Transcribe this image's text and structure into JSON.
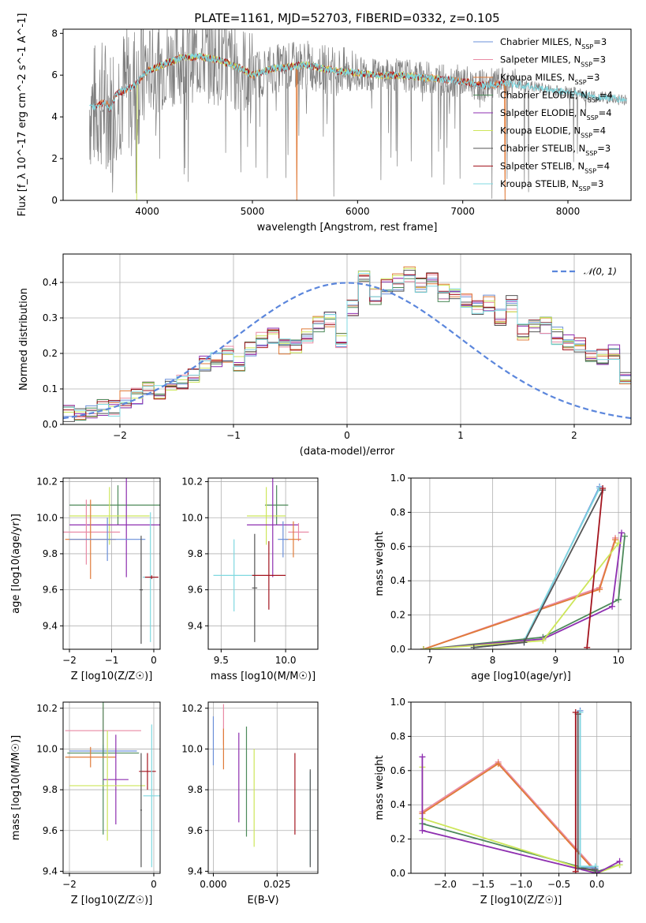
{
  "figure_title": "PLATE=1161, MJD=52703, FIBERID=0332, z=0.105",
  "colors": {
    "Chabrier MILES": "#6a8fd8",
    "Salpeter MILES": "#e98aa4",
    "Kroupa MILES": "#e07b39",
    "Chabrier ELODIE": "#4d8a5a",
    "Salpeter ELODIE": "#8e2fb0",
    "Kroupa ELODIE": "#cde65a",
    "Chabrier STELIB": "#555555",
    "Salpeter STELIB": "#a3141e",
    "Kroupa STELIB": "#7fd8e0"
  },
  "chart_data": [
    {
      "id": "spectrum",
      "type": "line",
      "title": "PLATE=1161, MJD=52703, FIBERID=0332, z=0.105",
      "xlabel": "wavelength [Angstrom, rest frame]",
      "ylabel": "Flux [f_λ 10^-17 erg cm^-2 s^-1 A^-1]",
      "xlim": [
        3200,
        8600
      ],
      "ylim": [
        0,
        8.2
      ],
      "xticks": [
        4000,
        5000,
        6000,
        7000,
        8000
      ],
      "yticks": [
        0,
        2,
        4,
        6,
        8
      ],
      "legend_position": "upper-right",
      "legend": [
        {
          "name": "Chabrier MILES",
          "nssp": "3"
        },
        {
          "name": "Salpeter MILES",
          "nssp": "3"
        },
        {
          "name": "Kroupa MILES",
          "nssp": "3"
        },
        {
          "name": "Chabrier ELODIE",
          "nssp": "4"
        },
        {
          "name": "Salpeter ELODIE",
          "nssp": "4"
        },
        {
          "name": "Kroupa ELODIE",
          "nssp": "4"
        },
        {
          "name": "Chabrier STELIB",
          "nssp": "3"
        },
        {
          "name": "Salpeter STELIB",
          "nssp": "4"
        },
        {
          "name": "Kroupa STELIB",
          "nssp": "3"
        }
      ],
      "continuum": {
        "x": [
          3450,
          3600,
          3650,
          3700,
          3800,
          3900,
          4000,
          4100,
          4300,
          4500,
          4700,
          4900,
          5000,
          5200,
          5500,
          5800,
          6000,
          6200,
          6400,
          6600,
          6800,
          7000,
          7200,
          7400,
          7600,
          7800,
          8000,
          8200,
          8400,
          8550
        ],
        "y": [
          4.4,
          4.7,
          4.3,
          5.1,
          5.3,
          5.6,
          6.2,
          6.4,
          6.8,
          6.9,
          6.7,
          6.3,
          6.0,
          6.3,
          6.5,
          6.2,
          6.1,
          6.0,
          6.0,
          5.9,
          5.8,
          5.7,
          5.5,
          5.6,
          5.5,
          5.3,
          5.2,
          5.0,
          4.9,
          4.8
        ]
      }
    },
    {
      "id": "residuals",
      "type": "line",
      "xlabel": "(data-model)/error",
      "ylabel": "Normed distribution",
      "xlim": [
        -2.5,
        2.5
      ],
      "ylim": [
        0,
        0.48
      ],
      "xticks": [
        -2,
        -1,
        0,
        1,
        2
      ],
      "yticks": [
        0.0,
        0.1,
        0.2,
        0.3,
        0.4
      ],
      "bin_width": 0.1,
      "legend_position": "upper-right",
      "reference_curve": {
        "label": "N(0,1)",
        "mean": 0,
        "sigma": 1
      },
      "histogram": [
        0.03,
        0.032,
        0.04,
        0.05,
        0.045,
        0.07,
        0.08,
        0.1,
        0.09,
        0.11,
        0.12,
        0.14,
        0.17,
        0.18,
        0.2,
        0.17,
        0.21,
        0.24,
        0.25,
        0.22,
        0.215,
        0.25,
        0.28,
        0.3,
        0.24,
        0.33,
        0.41,
        0.36,
        0.39,
        0.4,
        0.42,
        0.39,
        0.41,
        0.37,
        0.36,
        0.35,
        0.33,
        0.34,
        0.3,
        0.34,
        0.26,
        0.27,
        0.28,
        0.25,
        0.23,
        0.22,
        0.2,
        0.19,
        0.2,
        0.13,
        0.14,
        0.12,
        0.11,
        0.1,
        0.09,
        0.08,
        0.07,
        0.05,
        0.04,
        0.03
      ]
    },
    {
      "id": "age-vs-Z",
      "type": "scatter",
      "xlabel": "Z [log10(Z/Z☉)]",
      "ylabel": "age [log10(age/yr)]",
      "xlim": [
        -2.15,
        0.15
      ],
      "ylim": [
        9.27,
        10.22
      ],
      "xticks": [
        -2,
        -1,
        0
      ],
      "yticks": [
        9.4,
        9.6,
        9.8,
        10.0,
        10.2
      ],
      "points": [
        {
          "model": "Chabrier ELODIE",
          "x": -0.85,
          "y": 10.07,
          "xerr": 1.15,
          "yerr": 0.11
        },
        {
          "model": "Kroupa ELODIE",
          "x": -1.05,
          "y": 10.01,
          "xerr": 0.95,
          "yerr": 0.16
        },
        {
          "model": "Salpeter ELODIE",
          "x": -0.65,
          "y": 9.96,
          "xerr": 1.35,
          "yerr": 0.29
        },
        {
          "model": "Salpeter MILES",
          "x": -1.6,
          "y": 9.92,
          "xerr": 0.8,
          "yerr": 0.18
        },
        {
          "model": "Kroupa MILES",
          "x": -1.5,
          "y": 9.88,
          "xerr": 0.6,
          "yerr": 0.22
        },
        {
          "model": "Chabrier MILES",
          "x": -1.1,
          "y": 9.88,
          "xerr": 0.9,
          "yerr": 0.12
        },
        {
          "model": "Chabrier STELIB",
          "x": -0.3,
          "y": 9.6,
          "xerr": 0.04,
          "yerr": 0.3
        },
        {
          "model": "Kroupa STELIB",
          "x": -0.08,
          "y": 9.67,
          "xerr": 0.18,
          "yerr": 0.36
        },
        {
          "model": "Salpeter STELIB",
          "x": -0.05,
          "y": 9.67,
          "xerr": 0.16,
          "yerr": 0.01
        }
      ]
    },
    {
      "id": "age-vs-mass",
      "type": "scatter",
      "xlabel": "mass [log10(M/M☉)]",
      "ylabel": "",
      "xlim": [
        9.4,
        10.25
      ],
      "ylim": [
        9.27,
        10.22
      ],
      "xticks": [
        9.5,
        10.0
      ],
      "yticks": [
        9.4,
        9.6,
        9.8,
        10.0,
        10.2
      ],
      "points": [
        {
          "model": "Chabrier ELODIE",
          "x": 9.93,
          "y": 10.07,
          "xerr": 0.09,
          "yerr": 0.11
        },
        {
          "model": "Kroupa ELODIE",
          "x": 9.85,
          "y": 10.01,
          "xerr": 0.15,
          "yerr": 0.16
        },
        {
          "model": "Salpeter ELODIE",
          "x": 9.9,
          "y": 9.96,
          "xerr": 0.2,
          "yerr": 0.29
        },
        {
          "model": "Salpeter MILES",
          "x": 10.1,
          "y": 9.92,
          "xerr": 0.08,
          "yerr": 0.05
        },
        {
          "model": "Kroupa MILES",
          "x": 10.06,
          "y": 9.88,
          "xerr": 0.06,
          "yerr": 0.1
        },
        {
          "model": "Chabrier MILES",
          "x": 9.98,
          "y": 9.88,
          "xerr": 0.04,
          "yerr": 0.1
        },
        {
          "model": "Chabrier STELIB",
          "x": 9.76,
          "y": 9.61,
          "xerr": 0.02,
          "yerr": 0.3
        },
        {
          "model": "Kroupa STELIB",
          "x": 9.6,
          "y": 9.68,
          "xerr": 0.16,
          "yerr": 0.2
        },
        {
          "model": "Salpeter STELIB",
          "x": 9.87,
          "y": 9.68,
          "xerr": 0.13,
          "yerr": 0.19
        }
      ]
    },
    {
      "id": "weight-vs-age",
      "type": "line",
      "xlabel": "age [log10(age/yr)]",
      "ylabel": "mass weight",
      "xlim": [
        6.7,
        10.2
      ],
      "ylim": [
        0,
        1.0
      ],
      "xticks": [
        7,
        8,
        9,
        10
      ],
      "yticks": [
        0.0,
        0.2,
        0.4,
        0.6,
        0.8,
        1.0
      ],
      "series": [
        {
          "model": "Salpeter MILES",
          "x": [
            6.9,
            9.7,
            9.95
          ],
          "y": [
            0.0,
            0.36,
            0.65
          ]
        },
        {
          "model": "Kroupa MILES",
          "x": [
            6.9,
            9.7,
            9.95
          ],
          "y": [
            0.0,
            0.35,
            0.64
          ]
        },
        {
          "model": "Chabrier MILES",
          "x": [
            7.7,
            8.5,
            9.7
          ],
          "y": [
            0.01,
            0.04,
            0.95
          ]
        },
        {
          "model": "Kroupa STELIB",
          "x": [
            7.7,
            8.5,
            9.7
          ],
          "y": [
            0.01,
            0.05,
            0.94
          ]
        },
        {
          "model": "Chabrier ELODIE",
          "x": [
            6.9,
            8.8,
            10.0,
            10.1
          ],
          "y": [
            0.0,
            0.07,
            0.29,
            0.66
          ]
        },
        {
          "model": "Salpeter ELODIE",
          "x": [
            6.9,
            8.8,
            9.9,
            10.05
          ],
          "y": [
            0.0,
            0.06,
            0.25,
            0.68
          ]
        },
        {
          "model": "Kroupa ELODIE",
          "x": [
            6.9,
            8.8,
            10.0
          ],
          "y": [
            0.0,
            0.05,
            0.62
          ]
        },
        {
          "model": "Chabrier STELIB",
          "x": [
            7.7,
            8.5,
            9.75
          ],
          "y": [
            0.01,
            0.04,
            0.93
          ]
        },
        {
          "model": "Salpeter STELIB",
          "x": [
            9.5,
            9.75
          ],
          "y": [
            0.01,
            0.94
          ]
        }
      ]
    },
    {
      "id": "mass-vs-Z",
      "type": "scatter",
      "xlabel": "Z [log10(Z/Z☉)]",
      "ylabel": "mass [log10(M/M☉)]",
      "xlim": [
        -2.15,
        0.15
      ],
      "ylim": [
        9.39,
        10.23
      ],
      "xticks": [
        -2,
        0
      ],
      "yticks": [
        9.4,
        9.6,
        9.8,
        10.0,
        10.2
      ],
      "points": [
        {
          "model": "Salpeter MILES",
          "x": -1.2,
          "y": 10.09,
          "xerr": 0.9,
          "yerr": 0.13
        },
        {
          "model": "Chabrier MILES",
          "x": -1.2,
          "y": 9.99,
          "xerr": 0.8,
          "yerr": 0.03
        },
        {
          "model": "Chabrier ELODIE",
          "x": -1.2,
          "y": 9.98,
          "xerr": 0.85,
          "yerr": 0.4
        },
        {
          "model": "Kroupa MILES",
          "x": -1.5,
          "y": 9.96,
          "xerr": 0.6,
          "yerr": 0.05
        },
        {
          "model": "Salpeter ELODIE",
          "x": -0.9,
          "y": 9.85,
          "xerr": 0.3,
          "yerr": 0.22
        },
        {
          "model": "Kroupa ELODIE",
          "x": -1.1,
          "y": 9.82,
          "xerr": 0.9,
          "yerr": 0.27
        },
        {
          "model": "Salpeter STELIB",
          "x": -0.15,
          "y": 9.89,
          "xerr": 0.2,
          "yerr": 0.09
        },
        {
          "model": "Chabrier STELIB",
          "x": -0.3,
          "y": 9.7,
          "xerr": 0.02,
          "yerr": 0.28
        },
        {
          "model": "Kroupa STELIB",
          "x": -0.05,
          "y": 9.77,
          "xerr": 0.2,
          "yerr": 0.35
        }
      ]
    },
    {
      "id": "mass-vs-EBV",
      "type": "scatter",
      "xlabel": "E(B-V)",
      "ylabel": "",
      "xlim": [
        -0.002,
        0.041
      ],
      "ylim": [
        9.39,
        10.23
      ],
      "xticks": [
        0.0,
        0.025
      ],
      "xticklabels": [
        "0.000",
        "0.025"
      ],
      "yticks": [
        9.4,
        9.6,
        9.8,
        10.0,
        10.2
      ],
      "points": [
        {
          "model": "Chabrier MILES",
          "x": 0.0,
          "y": 10.04,
          "yerr": 0.12
        },
        {
          "model": "Salpeter MILES",
          "x": 0.004,
          "y": 10.12,
          "yerr": 0.1
        },
        {
          "model": "Kroupa MILES",
          "x": 0.004,
          "y": 10.0,
          "yerr": 0.1
        },
        {
          "model": "Salpeter ELODIE",
          "x": 0.01,
          "y": 9.86,
          "yerr": 0.22
        },
        {
          "model": "Chabrier ELODIE",
          "x": 0.013,
          "y": 9.84,
          "yerr": 0.27
        },
        {
          "model": "Kroupa ELODIE",
          "x": 0.016,
          "y": 9.76,
          "yerr": 0.24
        },
        {
          "model": "Salpeter STELIB",
          "x": 0.032,
          "y": 9.78,
          "yerr": 0.2
        },
        {
          "model": "Kroupa STELIB",
          "x": 0.038,
          "y": 9.66,
          "yerr": 0.23
        },
        {
          "model": "Chabrier STELIB",
          "x": 0.038,
          "y": 9.66,
          "yerr": 0.24
        }
      ]
    },
    {
      "id": "weight-vs-Z",
      "type": "line",
      "xlabel": "Z [log10(Z/Z☉)]",
      "ylabel": "mass weight",
      "xlim": [
        -2.45,
        0.45
      ],
      "ylim": [
        0,
        1.0
      ],
      "xticks": [
        -2.0,
        -1.5,
        -1.0,
        -0.5,
        0.0
      ],
      "xticklabels": [
        "−2.0",
        "−1.5",
        "−1.0",
        "−0.5",
        "0.0"
      ],
      "yticks": [
        0.0,
        0.2,
        0.4,
        0.6,
        0.8,
        1.0
      ],
      "series": [
        {
          "model": "Salpeter MILES",
          "x": [
            -2.3,
            -1.3,
            0.0
          ],
          "y": [
            0.36,
            0.65,
            0.01
          ]
        },
        {
          "model": "Kroupa MILES",
          "x": [
            -2.3,
            -1.3,
            0.0
          ],
          "y": [
            0.35,
            0.64,
            0.0
          ]
        },
        {
          "model": "Chabrier ELODIE",
          "x": [
            -2.3,
            0.0,
            0.3
          ],
          "y": [
            0.29,
            0.01,
            0.05
          ]
        },
        {
          "model": "Kroupa ELODIE",
          "x": [
            -2.3,
            -2.3,
            0.0,
            0.3
          ],
          "y": [
            0.62,
            0.32,
            0.0,
            0.05
          ]
        },
        {
          "model": "Salpeter ELODIE",
          "x": [
            -2.3,
            -2.3,
            0.0,
            0.3
          ],
          "y": [
            0.68,
            0.25,
            0.0,
            0.07
          ]
        },
        {
          "model": "Chabrier MILES",
          "x": [
            -0.22,
            -0.22,
            -0.02
          ],
          "y": [
            0.95,
            0.04,
            0.03
          ]
        },
        {
          "model": "Kroupa STELIB",
          "x": [
            -0.22,
            -0.22,
            -0.02
          ],
          "y": [
            0.94,
            0.04,
            0.04
          ]
        },
        {
          "model": "Chabrier STELIB",
          "x": [
            -0.25,
            -0.25,
            -0.02
          ],
          "y": [
            0.93,
            0.03,
            0.02
          ]
        },
        {
          "model": "Salpeter STELIB",
          "x": [
            -0.28,
            -0.28
          ],
          "y": [
            0.94,
            0.01
          ]
        }
      ]
    }
  ]
}
